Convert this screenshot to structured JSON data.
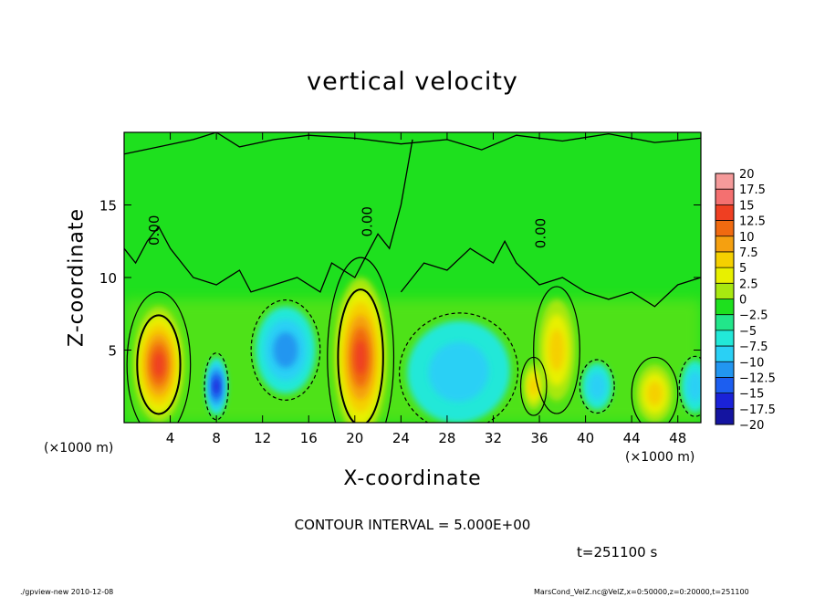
{
  "chart_data": {
    "type": "heatmap",
    "title": "vertical velocity",
    "xlabel": "X-coordinate",
    "ylabel": "Z-coordinate",
    "x_unit_label": "(×1000 m)",
    "x_ticks": [
      4,
      8,
      12,
      16,
      20,
      24,
      28,
      32,
      36,
      40,
      44,
      48
    ],
    "y_ticks": [
      5,
      10,
      15
    ],
    "xlim": [
      0,
      50
    ],
    "ylim": [
      0,
      20
    ],
    "contour_label": "0.00",
    "contour_interval_label": "CONTOUR INTERVAL = 5.000E+00",
    "time_label": "t=251100 s",
    "colorbar": {
      "labels": [
        "20",
        "17.5",
        "15",
        "12.5",
        "10",
        "7.5",
        "5",
        "2.5",
        "0",
        "−2.5",
        "−5",
        "−7.5",
        "−10",
        "−12.5",
        "−15",
        "−17.5",
        "−20"
      ],
      "colors": [
        "#f59a9a",
        "#f47070",
        "#ef3f22",
        "#f06a10",
        "#f5a010",
        "#f5d000",
        "#e8f000",
        "#a8e810",
        "#1ee01e",
        "#22e68a",
        "#22e8d8",
        "#2ad0f5",
        "#2296f0",
        "#1c5ef0",
        "#1a22d8",
        "#1414a0",
        "#6a1aa8"
      ]
    },
    "features": [
      {
        "kind": "updraft",
        "x": 3,
        "z": 4,
        "peak": 15
      },
      {
        "kind": "downdraft",
        "x": 8,
        "z": 2.5,
        "peak": -12.5
      },
      {
        "kind": "downdraft",
        "x": 14,
        "z": 5,
        "peak": -7.5
      },
      {
        "kind": "updraft",
        "x": 20.5,
        "z": 4.5,
        "peak": 15
      },
      {
        "kind": "downdraft",
        "x": 29,
        "z": 3.5,
        "peak": -5
      },
      {
        "kind": "updraft",
        "x": 37.5,
        "z": 5,
        "peak": 7.5
      },
      {
        "kind": "updraft",
        "x": 35.5,
        "z": 2.5,
        "peak": 7.5
      },
      {
        "kind": "downdraft",
        "x": 41,
        "z": 2.5,
        "peak": -5
      },
      {
        "kind": "updraft",
        "x": 46,
        "z": 2,
        "peak": 7.5
      },
      {
        "kind": "downdraft",
        "x": 49.5,
        "z": 2.5,
        "peak": -5
      }
    ]
  },
  "footer": {
    "left": "./gpview-new  2010-12-08",
    "right": "MarsCond_VelZ.nc@VelZ,x=0:50000,z=0:20000,t=251100"
  }
}
